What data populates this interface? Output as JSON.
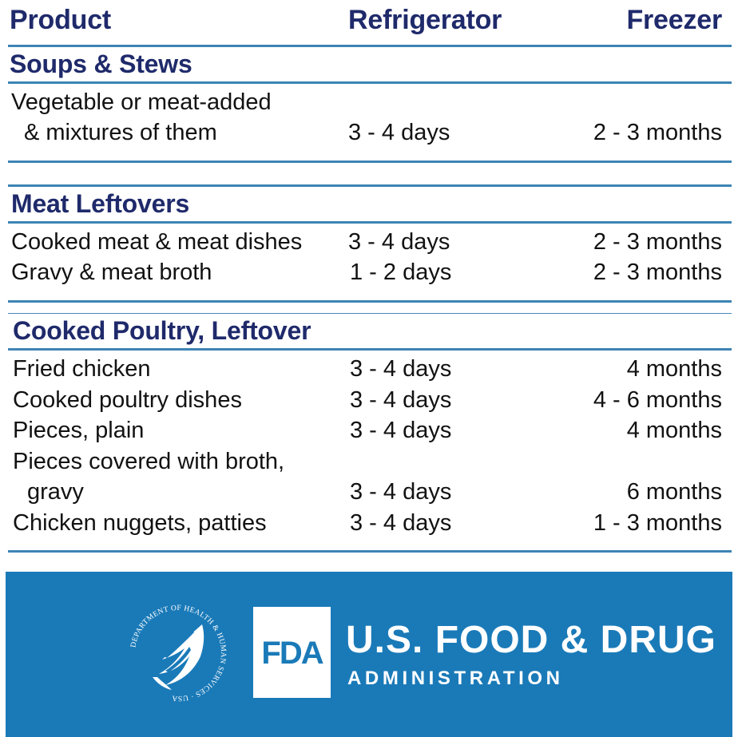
{
  "header": {
    "product": "Product",
    "refrigerator": "Refrigerator",
    "freezer": "Freezer"
  },
  "sections": [
    {
      "title": "Soups & Stews",
      "rows": [
        {
          "product_line1": "Vegetable or meat-added",
          "product_line2": "& mixtures of them",
          "refrigerator": "3 - 4 days",
          "freezer": "2 - 3 months"
        }
      ]
    },
    {
      "title": "Meat Leftovers",
      "rows": [
        {
          "product": "Cooked meat & meat dishes",
          "refrigerator": "3 - 4 days",
          "freezer": "2 - 3 months"
        },
        {
          "product": "Gravy & meat broth",
          "refrigerator": "1 - 2 days",
          "freezer": "2 - 3 months"
        }
      ]
    },
    {
      "title": "Cooked Poultry, Leftover",
      "rows": [
        {
          "product": "Fried chicken",
          "refrigerator": "3 - 4 days",
          "freezer": "4 months"
        },
        {
          "product": "Cooked poultry dishes",
          "refrigerator": "3 - 4 days",
          "freezer": "4 - 6 months"
        },
        {
          "product": "Pieces, plain",
          "refrigerator": "3 - 4 days",
          "freezer": "4 months"
        },
        {
          "product_line1": "Pieces covered with broth,",
          "product_line2": "gravy",
          "refrigerator": "3 - 4 days",
          "freezer": "6 months"
        },
        {
          "product": "Chicken nuggets, patties",
          "refrigerator": "3 - 4 days",
          "freezer": "1 - 3 months"
        }
      ]
    }
  ],
  "footer": {
    "fda_mark": "FDA",
    "agency_name": "U.S. FOOD & DRUG",
    "agency_sub": "ADMINISTRATION",
    "seal_text": "DEPARTMENT OF HEALTH & HUMAN SERVICES · USA",
    "background_color": "#1a7ab8"
  }
}
